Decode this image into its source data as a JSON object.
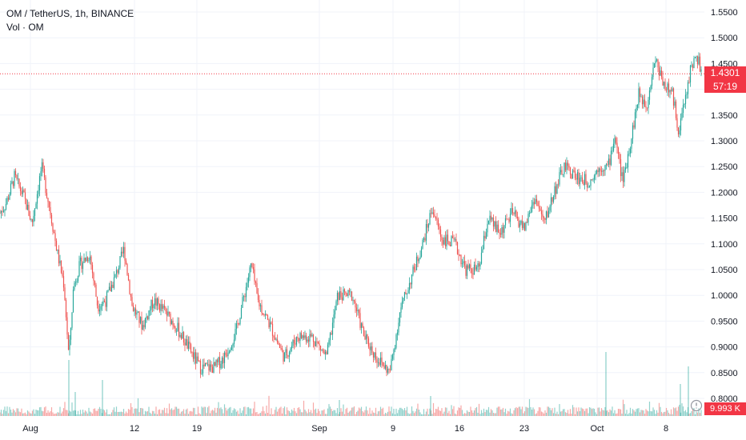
{
  "header": {
    "symbol": "OM / TetherUS, 1h, BINANCE",
    "volume_label": "Vol · OM"
  },
  "price_marker": {
    "price": "1.4301",
    "countdown": "57:19",
    "value": 1.4301,
    "color": "#f23645"
  },
  "volume_marker": {
    "value": "9.993 K"
  },
  "colors": {
    "up": "#26a69a",
    "down": "#ef5350",
    "grid": "#f0f3fa",
    "text": "#131722"
  },
  "chart_data": {
    "type": "candlestick",
    "title": "OM / TetherUS, 1h, BINANCE",
    "y_ticks": [
      "1.5500",
      "1.5000",
      "1.4500",
      "1.4000",
      "1.3500",
      "1.3000",
      "1.2500",
      "1.2000",
      "1.1500",
      "1.1000",
      "1.0500",
      "1.0000",
      "0.9500",
      "0.9000",
      "0.8500",
      "0.8000"
    ],
    "x_ticks": [
      "Aug",
      "12",
      "19",
      "Sep",
      "9",
      "16",
      "23",
      "Oct",
      "8"
    ],
    "ylim": [
      0.79,
      1.57
    ],
    "last_price": 1.4301,
    "price_path": [
      {
        "x": 0,
        "y": 1.16
      },
      {
        "x": 8,
        "y": 1.18
      },
      {
        "x": 18,
        "y": 1.23
      },
      {
        "x": 30,
        "y": 1.19
      },
      {
        "x": 40,
        "y": 1.14
      },
      {
        "x": 52,
        "y": 1.25
      },
      {
        "x": 62,
        "y": 1.17
      },
      {
        "x": 72,
        "y": 1.08
      },
      {
        "x": 80,
        "y": 1.02
      },
      {
        "x": 86,
        "y": 0.88
      },
      {
        "x": 92,
        "y": 1.02
      },
      {
        "x": 100,
        "y": 1.06
      },
      {
        "x": 112,
        "y": 1.08
      },
      {
        "x": 122,
        "y": 0.98
      },
      {
        "x": 132,
        "y": 0.99
      },
      {
        "x": 145,
        "y": 1.04
      },
      {
        "x": 155,
        "y": 1.09
      },
      {
        "x": 165,
        "y": 0.98
      },
      {
        "x": 178,
        "y": 0.94
      },
      {
        "x": 192,
        "y": 0.99
      },
      {
        "x": 205,
        "y": 0.97
      },
      {
        "x": 220,
        "y": 0.94
      },
      {
        "x": 235,
        "y": 0.9
      },
      {
        "x": 250,
        "y": 0.86
      },
      {
        "x": 268,
        "y": 0.86
      },
      {
        "x": 280,
        "y": 0.88
      },
      {
        "x": 295,
        "y": 0.93
      },
      {
        "x": 305,
        "y": 1.0
      },
      {
        "x": 314,
        "y": 1.06
      },
      {
        "x": 322,
        "y": 0.99
      },
      {
        "x": 338,
        "y": 0.94
      },
      {
        "x": 355,
        "y": 0.88
      },
      {
        "x": 372,
        "y": 0.92
      },
      {
        "x": 390,
        "y": 0.92
      },
      {
        "x": 408,
        "y": 0.88
      },
      {
        "x": 422,
        "y": 1.0
      },
      {
        "x": 440,
        "y": 1.0
      },
      {
        "x": 455,
        "y": 0.92
      },
      {
        "x": 470,
        "y": 0.88
      },
      {
        "x": 487,
        "y": 0.85
      },
      {
        "x": 500,
        "y": 0.97
      },
      {
        "x": 515,
        "y": 1.04
      },
      {
        "x": 528,
        "y": 1.1
      },
      {
        "x": 540,
        "y": 1.17
      },
      {
        "x": 552,
        "y": 1.11
      },
      {
        "x": 568,
        "y": 1.1
      },
      {
        "x": 582,
        "y": 1.05
      },
      {
        "x": 598,
        "y": 1.05
      },
      {
        "x": 610,
        "y": 1.15
      },
      {
        "x": 624,
        "y": 1.12
      },
      {
        "x": 640,
        "y": 1.16
      },
      {
        "x": 655,
        "y": 1.13
      },
      {
        "x": 668,
        "y": 1.19
      },
      {
        "x": 680,
        "y": 1.14
      },
      {
        "x": 692,
        "y": 1.2
      },
      {
        "x": 705,
        "y": 1.25
      },
      {
        "x": 720,
        "y": 1.23
      },
      {
        "x": 735,
        "y": 1.22
      },
      {
        "x": 750,
        "y": 1.25
      },
      {
        "x": 760,
        "y": 1.25
      },
      {
        "x": 768,
        "y": 1.31
      },
      {
        "x": 778,
        "y": 1.22
      },
      {
        "x": 788,
        "y": 1.3
      },
      {
        "x": 798,
        "y": 1.39
      },
      {
        "x": 808,
        "y": 1.37
      },
      {
        "x": 818,
        "y": 1.46
      },
      {
        "x": 830,
        "y": 1.41
      },
      {
        "x": 840,
        "y": 1.39
      },
      {
        "x": 848,
        "y": 1.32
      },
      {
        "x": 856,
        "y": 1.38
      },
      {
        "x": 864,
        "y": 1.45
      },
      {
        "x": 872,
        "y": 1.46
      },
      {
        "x": 876,
        "y": 1.43
      }
    ],
    "volume_spikes": [
      {
        "x": 86,
        "h": 70
      },
      {
        "x": 128,
        "h": 45
      },
      {
        "x": 94,
        "h": 30
      },
      {
        "x": 424,
        "h": 20
      },
      {
        "x": 757,
        "h": 80
      },
      {
        "x": 860,
        "h": 62
      },
      {
        "x": 850,
        "h": 40
      },
      {
        "x": 538,
        "h": 25
      }
    ]
  }
}
